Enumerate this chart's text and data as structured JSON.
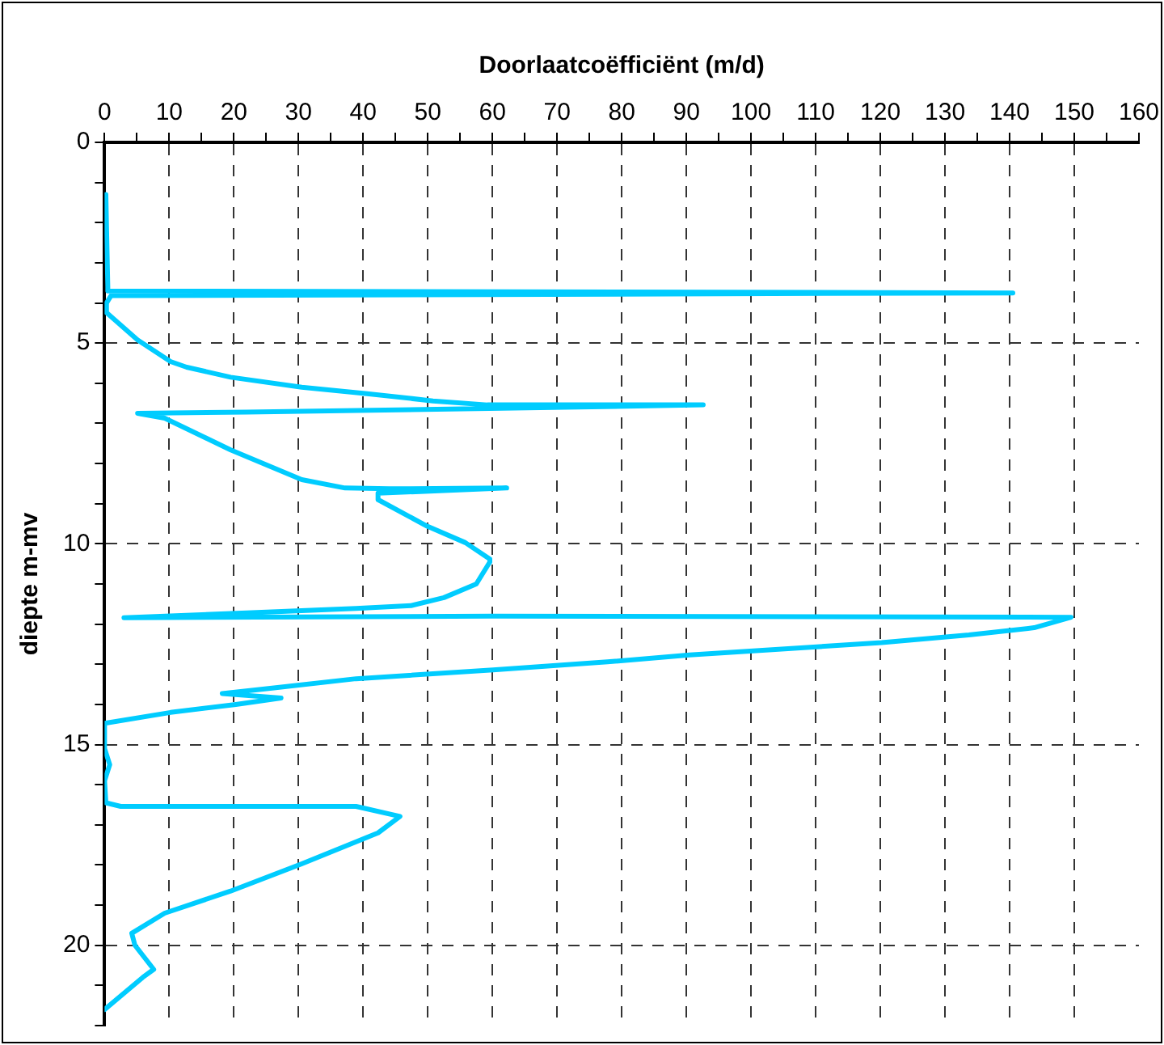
{
  "chart_data": {
    "type": "line",
    "xlabel": "Doorlaatcoëfficiënt (m/d)",
    "ylabel": "diepte m-mv",
    "xlim": [
      0,
      160
    ],
    "xticks": [
      0,
      {
        "value": 5,
        "label": null
      },
      10,
      {
        "value": 15,
        "label": null
      },
      20,
      {
        "value": 25,
        "label": null
      },
      30,
      {
        "value": 35,
        "label": null
      },
      40,
      {
        "value": 45,
        "label": null
      },
      50,
      {
        "value": 55,
        "label": null
      },
      60,
      {
        "value": 65,
        "label": null
      },
      70,
      {
        "value": 75,
        "label": null
      },
      80,
      {
        "value": 85,
        "label": null
      },
      90,
      {
        "value": 95,
        "label": null
      },
      100,
      {
        "value": 105,
        "label": null
      },
      110,
      {
        "value": 115,
        "label": null
      },
      120,
      {
        "value": 125,
        "label": null
      },
      130,
      {
        "value": 135,
        "label": null
      },
      140,
      {
        "value": 145,
        "label": null
      },
      150,
      {
        "value": 155,
        "label": null
      },
      160
    ],
    "ylim": [
      22,
      0
    ],
    "yticks": [
      0,
      {
        "value": 1,
        "label": null
      },
      {
        "value": 2,
        "label": null
      },
      {
        "value": 3,
        "label": null
      },
      {
        "value": 4,
        "label": null
      },
      5,
      {
        "value": 6,
        "label": null
      },
      {
        "value": 7,
        "label": null
      },
      {
        "value": 8,
        "label": null
      },
      {
        "value": 9,
        "label": null
      },
      10,
      {
        "value": 11,
        "label": null
      },
      {
        "value": 12,
        "label": null
      },
      {
        "value": 13,
        "label": null
      },
      {
        "value": 14,
        "label": null
      },
      15,
      {
        "value": 16,
        "label": null
      },
      {
        "value": 17,
        "label": null
      },
      {
        "value": 18,
        "label": null
      },
      {
        "value": 19,
        "label": null
      },
      20,
      {
        "value": 21,
        "label": null
      },
      {
        "value": 22,
        "label": null
      }
    ],
    "grid": true,
    "legend": false,
    "marker": "none",
    "line_style": "solid",
    "series": [
      {
        "color": "#00ccff",
        "x": [
          0.2,
          0.5,
          0.5,
          140.5,
          1,
          0.3,
          0.3,
          5.1,
          10.2,
          12.7,
          19.5,
          30.5,
          40.6,
          50.8,
          59.2,
          92.6,
          59.5,
          22,
          5.1,
          9.3,
          19.5,
          30.5,
          37.2,
          44,
          62.2,
          42.3,
          42.3,
          49.9,
          55.8,
          59.6,
          59.6,
          57.5,
          52.5,
          47.4,
          38.9,
          22,
          3,
          60,
          149.5,
          143.8,
          133.7,
          120.2,
          90.5,
          77.8,
          60.1,
          38.9,
          26.2,
          18.2,
          27.3,
          20.3,
          10.2,
          0,
          0,
          0.8,
          0,
          0.2,
          2.5,
          38.9,
          45.7,
          42.3,
          30.5,
          19.5,
          9.3,
          4.2,
          4.7,
          7.6,
          5.9,
          0
        ],
        "values": [
          1.3,
          3.6,
          3.7,
          3.75,
          3.82,
          4.0,
          4.24,
          4.92,
          5.46,
          5.6,
          5.85,
          6.1,
          6.26,
          6.44,
          6.54,
          6.54,
          6.63,
          6.72,
          6.75,
          6.87,
          7.66,
          8.4,
          8.61,
          8.63,
          8.61,
          8.74,
          8.9,
          9.56,
          9.97,
          10.38,
          10.45,
          11.0,
          11.34,
          11.54,
          11.61,
          11.72,
          11.84,
          11.8,
          11.83,
          12.09,
          12.27,
          12.46,
          12.77,
          12.94,
          13.14,
          13.36,
          13.59,
          13.73,
          13.84,
          14.0,
          14.2,
          14.47,
          15.1,
          15.5,
          15.9,
          16.45,
          16.54,
          16.54,
          16.79,
          17.2,
          17.97,
          18.65,
          19.2,
          19.7,
          20.0,
          20.6,
          20.8,
          21.6
        ]
      }
    ]
  }
}
